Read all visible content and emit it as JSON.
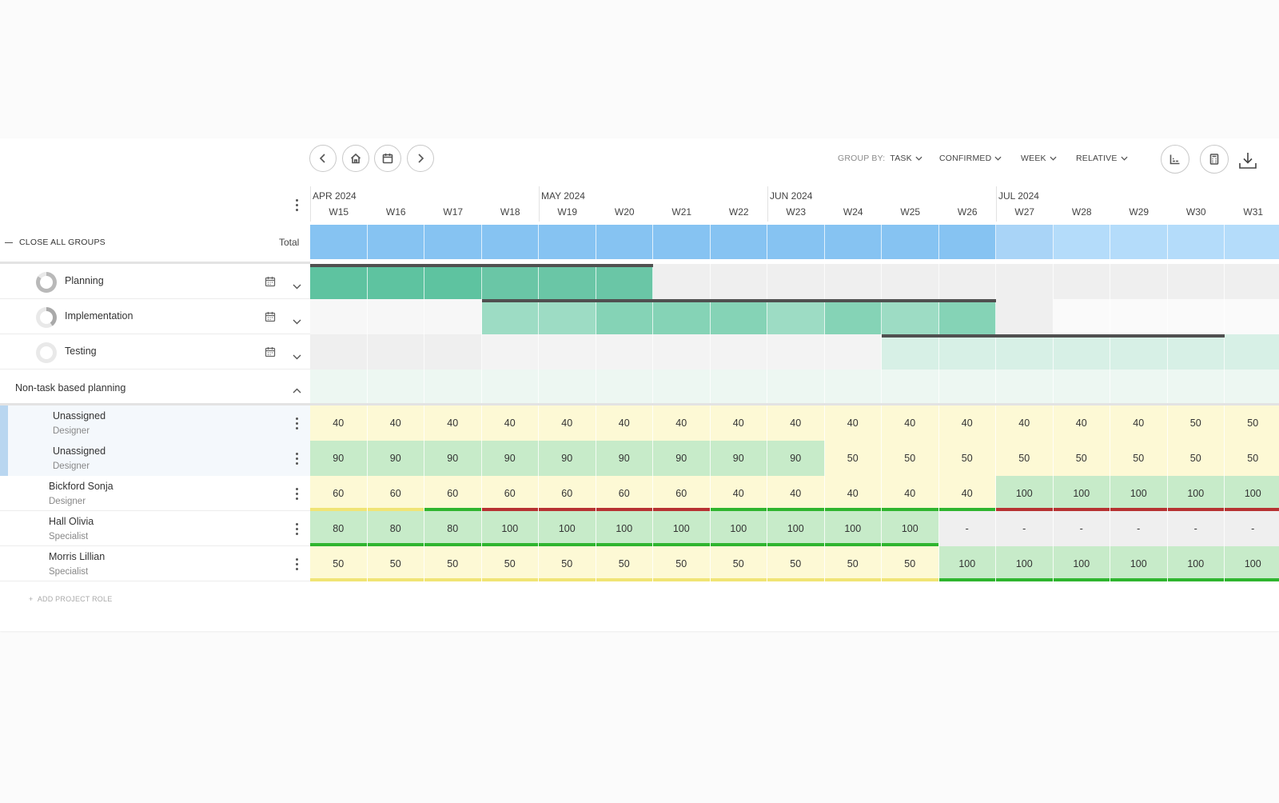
{
  "toolbar": {
    "group_by_label": "GROUP BY:",
    "group_by_value": "TASK",
    "confirmed": "CONFIRMED",
    "week": "WEEK",
    "relative": "RELATIVE"
  },
  "header": {
    "close_all_groups": "CLOSE ALL GROUPS",
    "total": "Total",
    "months": [
      "APR 2024",
      "MAY 2024",
      "JUN 2024",
      "JUL 2024"
    ],
    "weeks": [
      "W15",
      "W16",
      "W17",
      "W18",
      "W19",
      "W20",
      "W21",
      "W22",
      "W23",
      "W24",
      "W25",
      "W26",
      "W27",
      "W28",
      "W29",
      "W30",
      "W31"
    ]
  },
  "tasks": [
    {
      "name": "Planning",
      "progress": 0.85
    },
    {
      "name": "Implementation",
      "progress": 0.4
    },
    {
      "name": "Testing",
      "progress": 0.0
    }
  ],
  "non_task": {
    "label": "Non-task based planning"
  },
  "people": [
    {
      "name": "Unassigned",
      "role": "Designer",
      "values": [
        "40",
        "40",
        "40",
        "40",
        "40",
        "40",
        "40",
        "40",
        "40",
        "40",
        "40",
        "40",
        "40",
        "40",
        "40",
        "50",
        "50"
      ]
    },
    {
      "name": "Unassigned",
      "role": "Designer",
      "values": [
        "90",
        "90",
        "90",
        "90",
        "90",
        "90",
        "90",
        "90",
        "90",
        "50",
        "50",
        "50",
        "50",
        "50",
        "50",
        "50",
        "50"
      ]
    },
    {
      "name": "Bickford Sonja",
      "role": "Designer",
      "values": [
        "60",
        "60",
        "60",
        "60",
        "60",
        "60",
        "60",
        "40",
        "40",
        "40",
        "40",
        "40",
        "100",
        "100",
        "100",
        "100",
        "100"
      ]
    },
    {
      "name": "Hall Olivia",
      "role": "Specialist",
      "values": [
        "80",
        "80",
        "80",
        "100",
        "100",
        "100",
        "100",
        "100",
        "100",
        "100",
        "100",
        "-",
        "-",
        "-",
        "-",
        "-",
        "-"
      ]
    },
    {
      "name": "Morris Lillian",
      "role": "Specialist",
      "values": [
        "50",
        "50",
        "50",
        "50",
        "50",
        "50",
        "50",
        "50",
        "50",
        "50",
        "50",
        "100",
        "100",
        "100",
        "100",
        "100",
        "100"
      ]
    }
  ],
  "add_role": "ADD PROJECT ROLE",
  "colors": {
    "total_confirmed": "#86c3f2",
    "total_light": "#b4dcfa",
    "yellow": "#fdf9d5",
    "green": "#c7ebc9",
    "gray": "#efefef",
    "underline_green": "#2fb52f",
    "underline_red": "#b73232",
    "underline_yellow": "#f0e475"
  }
}
